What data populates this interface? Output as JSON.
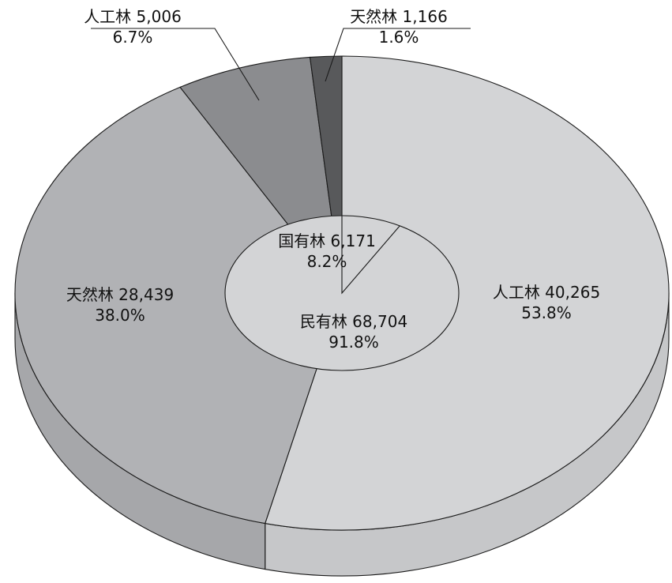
{
  "chart_data": {
    "type": "pie",
    "style": "3d-pie with inner ownership ellipse",
    "slices": [
      {
        "name": "人工林",
        "value": 40265,
        "percent": "53.8%",
        "value_label": "40,265",
        "color": "#d3d4d6"
      },
      {
        "name": "天然林",
        "value": 28439,
        "percent": "38.0%",
        "value_label": "28,439",
        "color": "#b1b2b5"
      },
      {
        "name": "人工林",
        "value": 5006,
        "percent": "6.7%",
        "value_label": "5,006",
        "color": "#8b8c8f"
      },
      {
        "name": "天然林",
        "value": 1166,
        "percent": "1.6%",
        "value_label": "1,166",
        "color": "#58595b"
      }
    ],
    "inner": [
      {
        "name": "国有林",
        "value": 6171,
        "percent": "8.2%",
        "value_label": "6,171"
      },
      {
        "name": "民有林",
        "value": 68704,
        "percent": "91.8%",
        "value_label": "68,704"
      }
    ],
    "inner_color": "#d3d4d6"
  }
}
